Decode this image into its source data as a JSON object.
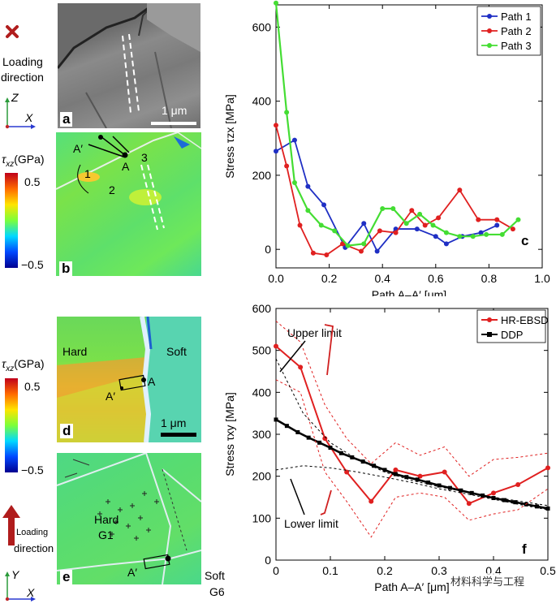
{
  "left_top": {
    "loading_label_1": "Loading",
    "loading_label_2": "direction",
    "axis_z": "Z",
    "axis_x": "X",
    "panel_a": "a",
    "scale_bar": "1 μm",
    "colorbar_title": "τ",
    "colorbar_sub": "xz",
    "colorbar_unit": "(GPa)",
    "colorbar_max": "0.5",
    "colorbar_min": "−0.5",
    "panel_b": "b",
    "path_1": "1",
    "path_2": "2",
    "path_3": "3",
    "point_a": "A",
    "point_a_prime": "A′"
  },
  "left_bottom": {
    "colorbar_title": "τ",
    "colorbar_sub": "xz",
    "colorbar_unit": "(GPa)",
    "colorbar_max": "0.5",
    "colorbar_min": "−0.5",
    "hard": "Hard",
    "soft": "Soft",
    "point_a": "A",
    "point_a_prime": "A′",
    "scale_bar": "1 μm",
    "panel_d": "d",
    "hard_g1_1": "Hard",
    "hard_g1_2": "G1",
    "soft_g6_1": "Soft",
    "soft_g6_2": "G6",
    "panel_e": "e",
    "loading_label_1": "Loading",
    "loading_label_2": "direction",
    "axis_y": "Y",
    "axis_x": "X"
  },
  "colors": {
    "path1": "#1f2fc4",
    "path2": "#e02020",
    "path3": "#44dd33",
    "ddp": "#000000",
    "hrebsd": "#e02020"
  },
  "chart_data": [
    {
      "type": "line",
      "panel": "c",
      "xlabel": "Path A–A′ [μm]",
      "ylabel": "Stress τzx [MPa]",
      "xlim": [
        0,
        1.0
      ],
      "ylim": [
        -50,
        660
      ],
      "xticks": [
        "0.0",
        "0.2",
        "0.4",
        "0.6",
        "0.8",
        "1.0"
      ],
      "yticks": [
        "0",
        "200",
        "400",
        "600"
      ],
      "legend": [
        "Path 1",
        "Path 2",
        "Path 3"
      ],
      "series": [
        {
          "name": "Path 1",
          "x": [
            0,
            0.07,
            0.12,
            0.18,
            0.26,
            0.33,
            0.38,
            0.45,
            0.53,
            0.6,
            0.64,
            0.7,
            0.77,
            0.83
          ],
          "y": [
            265,
            295,
            170,
            120,
            5,
            70,
            -5,
            55,
            55,
            35,
            15,
            35,
            45,
            65
          ]
        },
        {
          "name": "Path 2",
          "x": [
            0,
            0.04,
            0.09,
            0.14,
            0.19,
            0.25,
            0.32,
            0.39,
            0.45,
            0.51,
            0.56,
            0.61,
            0.69,
            0.76,
            0.83,
            0.89
          ],
          "y": [
            335,
            225,
            65,
            -10,
            -15,
            15,
            -5,
            50,
            45,
            105,
            65,
            85,
            160,
            80,
            80,
            55
          ]
        },
        {
          "name": "Path 3",
          "x": [
            0,
            0.04,
            0.07,
            0.12,
            0.17,
            0.22,
            0.27,
            0.33,
            0.4,
            0.44,
            0.49,
            0.54,
            0.59,
            0.64,
            0.69,
            0.74,
            0.79,
            0.85,
            0.91
          ],
          "y": [
            665,
            370,
            180,
            105,
            65,
            50,
            10,
            15,
            110,
            110,
            70,
            95,
            65,
            45,
            35,
            35,
            40,
            40,
            80
          ]
        }
      ]
    },
    {
      "type": "line",
      "panel": "f",
      "xlabel": "Path A–A′ [μm]",
      "ylabel": "Stress τxy [MPa]",
      "xlim": [
        0,
        0.5
      ],
      "ylim": [
        0,
        600
      ],
      "xticks": [
        "0",
        "0.1",
        "0.2",
        "0.3",
        "0.4",
        "0.5"
      ],
      "yticks": [
        "0",
        "100",
        "200",
        "300",
        "400",
        "500",
        "600"
      ],
      "legend": [
        "HR-EBSD",
        "DDP"
      ],
      "annotations": [
        "Upper limit",
        "Lower limit"
      ],
      "series": [
        {
          "name": "HR-EBSD",
          "x": [
            0,
            0.045,
            0.09,
            0.13,
            0.175,
            0.22,
            0.265,
            0.31,
            0.355,
            0.4,
            0.445,
            0.5
          ],
          "y": [
            510,
            460,
            290,
            210,
            140,
            215,
            200,
            210,
            135,
            160,
            180,
            220
          ]
        },
        {
          "name": "DDP",
          "x": [
            0,
            0.02,
            0.04,
            0.06,
            0.08,
            0.1,
            0.12,
            0.14,
            0.16,
            0.18,
            0.2,
            0.22,
            0.24,
            0.26,
            0.28,
            0.3,
            0.32,
            0.34,
            0.36,
            0.38,
            0.4,
            0.42,
            0.44,
            0.46,
            0.48,
            0.5
          ],
          "y": [
            335,
            320,
            305,
            292,
            280,
            268,
            255,
            245,
            235,
            225,
            215,
            205,
            198,
            192,
            185,
            178,
            172,
            166,
            160,
            154,
            148,
            143,
            138,
            133,
            128,
            123
          ]
        },
        {
          "name": "HR-EBSD upper band",
          "x": [
            0,
            0.045,
            0.09,
            0.13,
            0.175,
            0.22,
            0.265,
            0.31,
            0.355,
            0.4,
            0.445,
            0.5
          ],
          "y": [
            570,
            520,
            370,
            290,
            230,
            280,
            250,
            270,
            200,
            240,
            245,
            255
          ]
        },
        {
          "name": "HR-EBSD lower band",
          "x": [
            0,
            0.045,
            0.09,
            0.13,
            0.175,
            0.22,
            0.265,
            0.31,
            0.355,
            0.4,
            0.445,
            0.5
          ],
          "y": [
            430,
            400,
            210,
            140,
            55,
            150,
            160,
            150,
            95,
            110,
            120,
            170
          ]
        },
        {
          "name": "Upper limit",
          "x": [
            0,
            0.05,
            0.1,
            0.15,
            0.2,
            0.25,
            0.3,
            0.35,
            0.4,
            0.45,
            0.5
          ],
          "y": [
            480,
            350,
            280,
            240,
            210,
            190,
            175,
            162,
            150,
            140,
            130
          ]
        },
        {
          "name": "Lower limit",
          "x": [
            0,
            0.05,
            0.1,
            0.15,
            0.2,
            0.25,
            0.3,
            0.35,
            0.4,
            0.45,
            0.5
          ],
          "y": [
            215,
            225,
            220,
            210,
            198,
            185,
            170,
            158,
            145,
            132,
            120
          ]
        }
      ]
    }
  ],
  "watermark": "材料科学与工程"
}
